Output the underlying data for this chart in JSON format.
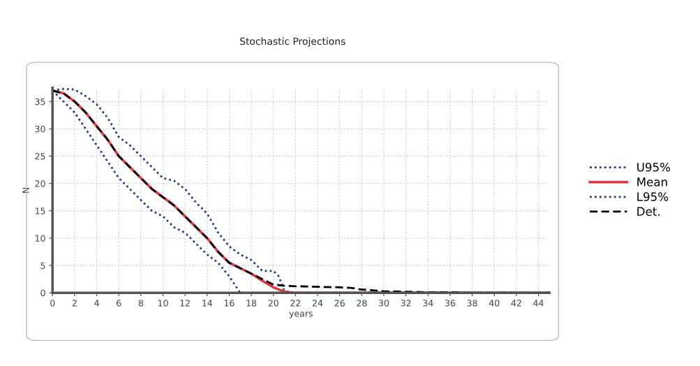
{
  "chart_data": {
    "type": "line",
    "title": "Stochastic Projections",
    "xlabel": "years",
    "ylabel": "N",
    "xlim": [
      0,
      45
    ],
    "ylim": [
      0,
      37.5
    ],
    "xticks": [
      0,
      2,
      4,
      6,
      8,
      10,
      12,
      14,
      16,
      18,
      20,
      22,
      24,
      26,
      28,
      30,
      32,
      34,
      36,
      38,
      40,
      42,
      44
    ],
    "yticks": [
      0,
      5,
      10,
      15,
      20,
      25,
      30,
      35
    ],
    "grid": true,
    "legend": "right",
    "marker": "none",
    "series": [
      {
        "name": "U95%",
        "color": "#1f3a8a",
        "line_style": "dotted",
        "x": [
          0,
          1,
          2,
          3,
          4,
          5,
          6,
          7,
          8,
          9,
          10,
          11,
          12,
          13,
          14,
          15,
          16,
          17,
          18,
          19,
          20,
          20.5,
          21,
          22,
          45
        ],
        "values": [
          37,
          37.3,
          37.2,
          36,
          34.5,
          32,
          28.5,
          27,
          25,
          23,
          21,
          20.5,
          19,
          16.5,
          14.5,
          11,
          8.5,
          7,
          6,
          4,
          4,
          3,
          0.3,
          0,
          0
        ]
      },
      {
        "name": "Mean",
        "color": "#e8323c",
        "line_style": "solid",
        "x": [
          0,
          1,
          2,
          3,
          4,
          5,
          6,
          7,
          8,
          9,
          10,
          11,
          12,
          13,
          14,
          15,
          16,
          17,
          18,
          19,
          20,
          21,
          22,
          45
        ],
        "values": [
          37,
          36.5,
          35,
          33,
          30.5,
          28,
          25,
          23,
          21,
          19,
          17.5,
          16,
          14,
          12,
          10,
          7.5,
          5.5,
          4.5,
          3.5,
          2.2,
          1.0,
          0.2,
          0,
          0
        ]
      },
      {
        "name": "L95%",
        "color": "#1f3a8a",
        "line_style": "dotted",
        "x": [
          0,
          1,
          2,
          3,
          4,
          5,
          6,
          7,
          8,
          9,
          10,
          11,
          12,
          13,
          14,
          15,
          16,
          17,
          45
        ],
        "values": [
          37,
          35,
          33,
          30,
          27,
          24,
          21,
          19,
          17,
          15,
          14,
          12,
          11,
          9,
          7,
          5.5,
          3,
          0,
          0
        ]
      },
      {
        "name": "Det.",
        "color": "#000000",
        "line_style": "dashed",
        "x": [
          0,
          1,
          2,
          3,
          4,
          5,
          6,
          7,
          8,
          9,
          10,
          11,
          12,
          13,
          14,
          15,
          16,
          17,
          18,
          19,
          20,
          21,
          22,
          24,
          26,
          27,
          28,
          30,
          32,
          34,
          36,
          38,
          45
        ],
        "values": [
          37,
          36.5,
          35,
          33,
          30.5,
          28,
          25,
          23,
          21,
          19,
          17.5,
          16,
          14,
          12,
          10,
          7.5,
          5.5,
          4.5,
          3.5,
          2.5,
          1.5,
          1.3,
          1.2,
          1.1,
          1.0,
          0.9,
          0.6,
          0.3,
          0.2,
          0.1,
          0.1,
          0,
          0
        ]
      }
    ]
  }
}
